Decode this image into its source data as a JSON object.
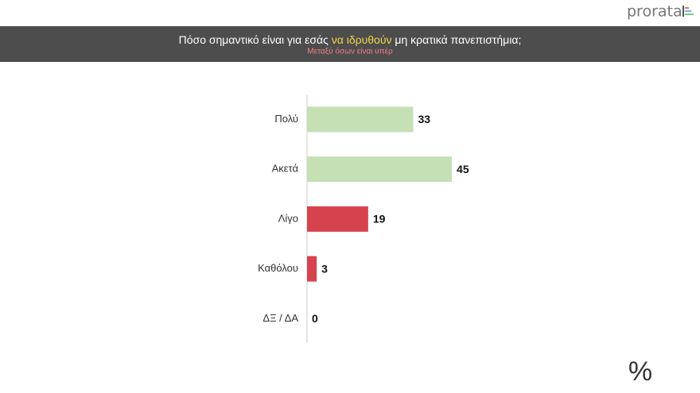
{
  "brand": "prorata",
  "corner_symbol": "%",
  "chart_data": {
    "type": "barh",
    "title_parts": [
      "Πόσο σημαντικό είναι για εσάς ",
      "να ιδρυθούν",
      " μη κρατικά πανεπιστήμια;"
    ],
    "subtitle": "Μεταξύ όσων είναι υπέρ",
    "categories": [
      "Πολύ",
      "Ακετά",
      "Λίγο",
      "Καθόλου",
      "ΔΞ / ΔΑ"
    ],
    "values": [
      33,
      45,
      19,
      3,
      0
    ],
    "colors": [
      "#c5e0b4",
      "#c5e0b4",
      "#d6434e",
      "#d6434e",
      "#d6434e"
    ],
    "xlim": [
      0,
      110
    ]
  }
}
